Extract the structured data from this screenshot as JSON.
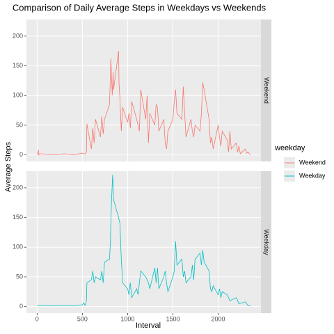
{
  "chart_data": {
    "type": "line",
    "title": "Comparison of Daily Average Steps in Weekdays vs Weekends",
    "x_label": "Interval",
    "y_label": "Average Steps",
    "legend_title": "weekday",
    "xlim": [
      -117.75,
      2472.75
    ],
    "ylim": [
      -11,
      228
    ],
    "xticks": [
      0,
      500,
      1000,
      1500,
      2000
    ],
    "yticks": [
      0,
      50,
      100,
      150,
      200
    ],
    "grid": true,
    "series": [
      {
        "name": "Weekend",
        "color": "#F8766D",
        "x": [
          0,
          15,
          20,
          30,
          100,
          200,
          300,
          400,
          500,
          530,
          545,
          550,
          600,
          615,
          630,
          645,
          700,
          715,
          730,
          745,
          800,
          815,
          830,
          840,
          845,
          900,
          905,
          915,
          930,
          945,
          1000,
          1015,
          1030,
          1045,
          1100,
          1115,
          1130,
          1145,
          1200,
          1215,
          1230,
          1245,
          1300,
          1315,
          1330,
          1345,
          1400,
          1415,
          1430,
          1445,
          1500,
          1515,
          1530,
          1545,
          1600,
          1615,
          1630,
          1645,
          1700,
          1715,
          1730,
          1745,
          1800,
          1815,
          1830,
          1845,
          1900,
          1915,
          1930,
          1945,
          2000,
          2015,
          2030,
          2045,
          2100,
          2115,
          2130,
          2145,
          2200,
          2215,
          2230,
          2245,
          2300,
          2315,
          2330,
          2355
        ],
        "values": [
          0,
          8,
          0,
          2,
          1,
          0,
          2,
          0,
          3,
          1,
          5,
          52,
          10,
          45,
          20,
          60,
          30,
          65,
          35,
          60,
          85,
          162,
          100,
          140,
          110,
          175,
          120,
          95,
          40,
          80,
          55,
          70,
          45,
          90,
          60,
          50,
          40,
          110,
          60,
          100,
          20,
          70,
          50,
          85,
          80,
          40,
          60,
          20,
          10,
          40,
          60,
          90,
          110,
          70,
          60,
          115,
          70,
          30,
          60,
          40,
          30,
          50,
          40,
          70,
          122,
          110,
          60,
          20,
          30,
          10,
          50,
          30,
          15,
          40,
          25,
          5,
          40,
          10,
          20,
          5,
          15,
          2,
          10,
          3,
          5,
          0
        ]
      },
      {
        "name": "Weekday",
        "color": "#00BFC4",
        "x": [
          0,
          30,
          100,
          200,
          300,
          400,
          500,
          515,
          530,
          545,
          550,
          600,
          615,
          630,
          645,
          700,
          715,
          730,
          745,
          800,
          810,
          820,
          830,
          835,
          845,
          900,
          915,
          930,
          945,
          1000,
          1015,
          1030,
          1045,
          1100,
          1115,
          1130,
          1145,
          1200,
          1215,
          1230,
          1245,
          1300,
          1315,
          1330,
          1345,
          1400,
          1415,
          1430,
          1445,
          1500,
          1515,
          1530,
          1545,
          1600,
          1615,
          1630,
          1645,
          1700,
          1715,
          1730,
          1745,
          1800,
          1815,
          1830,
          1845,
          1900,
          1915,
          1930,
          1945,
          2000,
          2015,
          2030,
          2045,
          2100,
          2130,
          2200,
          2230,
          2300,
          2330,
          2355
        ],
        "values": [
          2,
          1,
          2,
          1,
          2,
          1,
          3,
          6,
          2,
          10,
          40,
          45,
          60,
          40,
          50,
          45,
          60,
          40,
          75,
          80,
          110,
          170,
          205,
          222,
          180,
          150,
          140,
          80,
          40,
          30,
          20,
          40,
          15,
          30,
          20,
          40,
          60,
          50,
          45,
          40,
          30,
          65,
          40,
          65,
          30,
          50,
          60,
          40,
          25,
          50,
          60,
          110,
          70,
          80,
          50,
          60,
          40,
          50,
          70,
          45,
          80,
          90,
          70,
          95,
          75,
          60,
          30,
          25,
          35,
          20,
          30,
          15,
          25,
          20,
          10,
          15,
          5,
          8,
          2,
          1
        ]
      }
    ]
  }
}
